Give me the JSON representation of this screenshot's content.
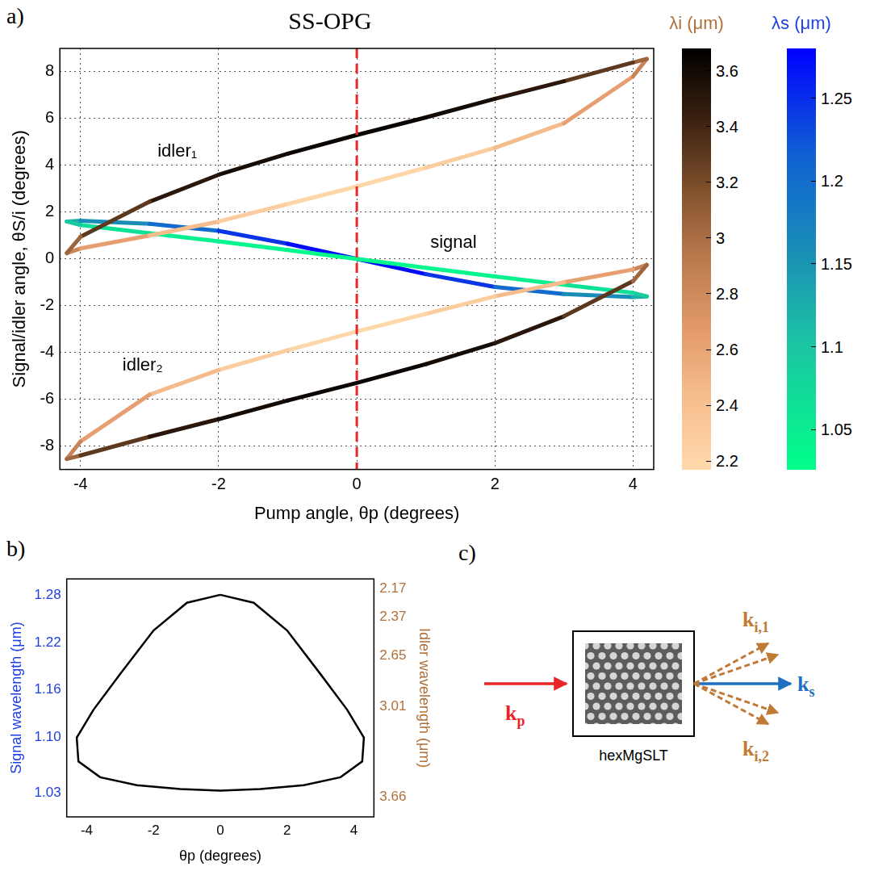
{
  "chart_data": [
    {
      "panel_label": "a)",
      "type": "line",
      "title": "SS-OPG",
      "x_label": "Pump angle, θp (degrees)",
      "y_label": "Signal/idler angle, θS/i (degrees)",
      "xlim": [
        -4.3,
        4.3
      ],
      "xticks": [
        -4,
        -2,
        0,
        2,
        4
      ],
      "ylim": [
        -9,
        9
      ],
      "yticks": [
        -8,
        -6,
        -4,
        -2,
        0,
        2,
        4,
        6,
        8
      ],
      "grid": true,
      "vline": {
        "x": 0,
        "color": "#e8262a",
        "line_style": "dashed"
      },
      "colorbars": [
        {
          "title": "λi (μm)",
          "range": [
            2.17,
            3.68
          ],
          "ticks": [
            2.2,
            2.4,
            2.6,
            2.8,
            3,
            3.2,
            3.4,
            3.6
          ],
          "series": [
            {
              "name": "idler₁",
              "label": {
                "x": -2.6,
                "y": 4.6
              },
              "x": [
                -4.2,
                -4,
                -3,
                -2,
                -1,
                0,
                1,
                2,
                3,
                4,
                4.2,
                4,
                3,
                2,
                1,
                0,
                -1,
                -2,
                -3,
                -4,
                -4.2
              ],
              "values": [
                0.25,
                0.45,
                1.0,
                1.6,
                2.35,
                3.1,
                3.9,
                4.75,
                5.8,
                7.8,
                8.55,
                8.4,
                7.6,
                6.85,
                6.05,
                5.3,
                4.5,
                3.6,
                2.45,
                0.95,
                0.25
              ],
              "wavelength": [
                2.93,
                2.74,
                2.53,
                2.35,
                2.21,
                2.17,
                2.21,
                2.35,
                2.53,
                2.74,
                2.93,
                3.16,
                3.45,
                3.56,
                3.62,
                3.65,
                3.62,
                3.56,
                3.45,
                3.16,
                2.93
              ]
            },
            {
              "name": "idler₂",
              "label": {
                "x": -3.1,
                "y": -4.55
              },
              "x": [
                4.2,
                4,
                3,
                2,
                1,
                0,
                -1,
                -2,
                -3,
                -4,
                -4.2,
                -4,
                -3,
                -2,
                -1,
                0,
                1,
                2,
                3,
                4,
                4.2
              ],
              "values": [
                -0.25,
                -0.45,
                -1.0,
                -1.6,
                -2.35,
                -3.1,
                -3.9,
                -4.75,
                -5.8,
                -7.8,
                -8.55,
                -8.4,
                -7.6,
                -6.85,
                -6.05,
                -5.3,
                -4.5,
                -3.6,
                -2.45,
                -0.95,
                -0.25
              ],
              "wavelength": [
                2.93,
                2.74,
                2.53,
                2.35,
                2.21,
                2.17,
                2.21,
                2.35,
                2.53,
                2.74,
                2.93,
                3.16,
                3.45,
                3.56,
                3.62,
                3.65,
                3.62,
                3.56,
                3.45,
                3.16,
                2.93
              ]
            }
          ]
        },
        {
          "title": "λs (μm)",
          "range": [
            1.026,
            1.28
          ],
          "ticks": [
            1.05,
            1.1,
            1.15,
            1.2,
            1.25
          ],
          "series": [
            {
              "name": "signal",
              "label": {
                "x": 1.4,
                "y": 0.7
              },
              "x": [
                -4.2,
                -4,
                -3,
                -2,
                -1,
                0,
                1,
                2,
                3,
                4,
                4.2,
                4,
                3,
                2,
                1,
                0,
                -1,
                -2,
                -3,
                -4,
                -4.2
              ],
              "values": [
                1.6,
                1.63,
                1.5,
                1.2,
                0.65,
                0,
                -0.65,
                -1.2,
                -1.5,
                -1.63,
                -1.6,
                -1.45,
                -1.1,
                -0.75,
                -0.38,
                0,
                0.38,
                0.75,
                1.1,
                1.45,
                1.6
              ],
              "wavelength": [
                1.11,
                1.14,
                1.18,
                1.225,
                1.265,
                1.28,
                1.265,
                1.225,
                1.18,
                1.14,
                1.11,
                1.08,
                1.05,
                1.04,
                1.035,
                1.033,
                1.035,
                1.04,
                1.05,
                1.08,
                1.11
              ]
            }
          ]
        }
      ]
    },
    {
      "panel_label": "b)",
      "type": "line",
      "x_label": "θp (degrees)",
      "y_label": "Signal wavelength (μm)",
      "y2_label": "Idler wavelength (μm)",
      "xlim": [
        -4.6,
        4.6
      ],
      "xticks": [
        -4,
        -2,
        0,
        2,
        4
      ],
      "ylim": [
        1.0,
        1.3
      ],
      "yticks": [
        1.03,
        {
          "value": 1.1,
          "label": "1.10"
        },
        1.16,
        1.22,
        1.28
      ],
      "y2lim": [
        3.8,
        2.1
      ],
      "y2ticks": [
        2.17,
        2.37,
        2.65,
        3.01,
        3.66
      ],
      "grid": false,
      "series": [
        {
          "color": "#000000",
          "x": [
            0,
            1,
            2,
            3,
            3.8,
            4.3,
            4.25,
            3.6,
            2.5,
            1.2,
            0,
            -1.2,
            -2.5,
            -3.6,
            -4.25,
            -4.3,
            -3.8,
            -3,
            -2,
            -1,
            0
          ],
          "values": [
            1.28,
            1.27,
            1.235,
            1.18,
            1.135,
            1.1,
            1.07,
            1.05,
            1.04,
            1.035,
            1.033,
            1.035,
            1.04,
            1.05,
            1.07,
            1.1,
            1.135,
            1.18,
            1.235,
            1.27,
            1.28
          ]
        }
      ]
    }
  ],
  "diagram": {
    "panel_label": "c)",
    "crystal": {
      "label": "hexMgSLT"
    },
    "vectors": {
      "pump": {
        "symbol": "k",
        "subscript": "p"
      },
      "signal": {
        "symbol": "k",
        "subscript": "s"
      },
      "idler": [
        {
          "symbol": "k",
          "subscript": "i,1"
        },
        {
          "symbol": "k",
          "subscript": "i,2"
        }
      ]
    }
  }
}
